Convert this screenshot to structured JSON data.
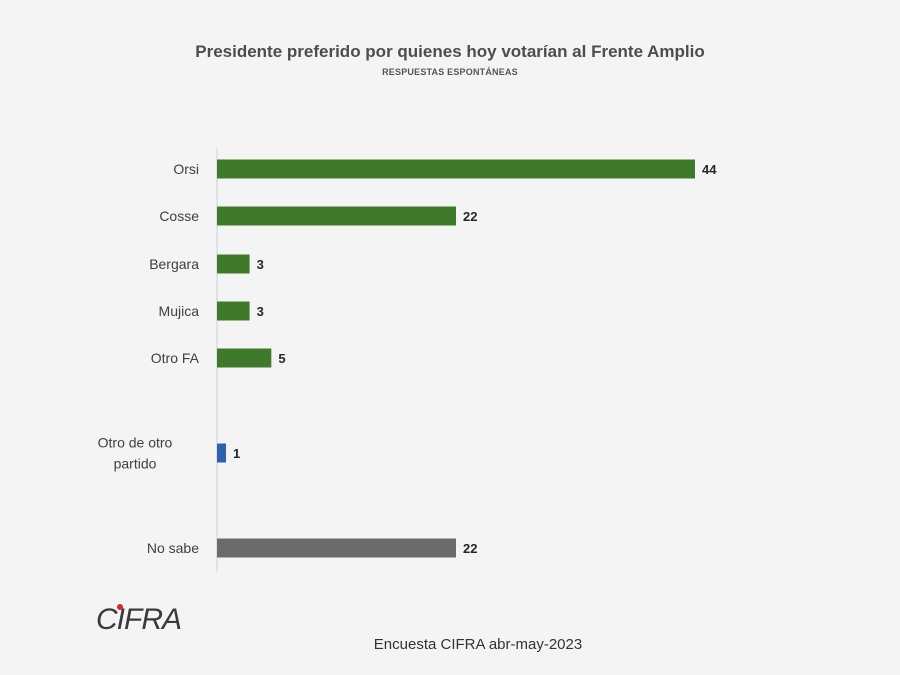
{
  "chart_data": {
    "type": "bar",
    "orientation": "horizontal",
    "title": "Presidente preferido por quienes hoy votarían al Frente Amplio",
    "subtitle": "RESPUESTAS ESPONTÁNEAS",
    "categories": [
      [
        "Orsi"
      ],
      [
        "Cosse"
      ],
      [
        "Bergara"
      ],
      [
        "Mujica"
      ],
      [
        "Otro FA"
      ],
      [
        "Otro de otro",
        "partido"
      ],
      [
        "No sabe"
      ]
    ],
    "values": [
      44,
      22,
      3,
      3,
      5,
      1,
      22
    ],
    "colors": [
      "#3f7a2a",
      "#3f7a2a",
      "#3f7a2a",
      "#3f7a2a",
      "#3f7a2a",
      "#2e62b0",
      "#6b6b6b"
    ],
    "xlim": [
      0,
      44
    ],
    "grid": false
  },
  "logo_text": "CIFRA",
  "source": "Encuesta CIFRA abr-may-2023"
}
